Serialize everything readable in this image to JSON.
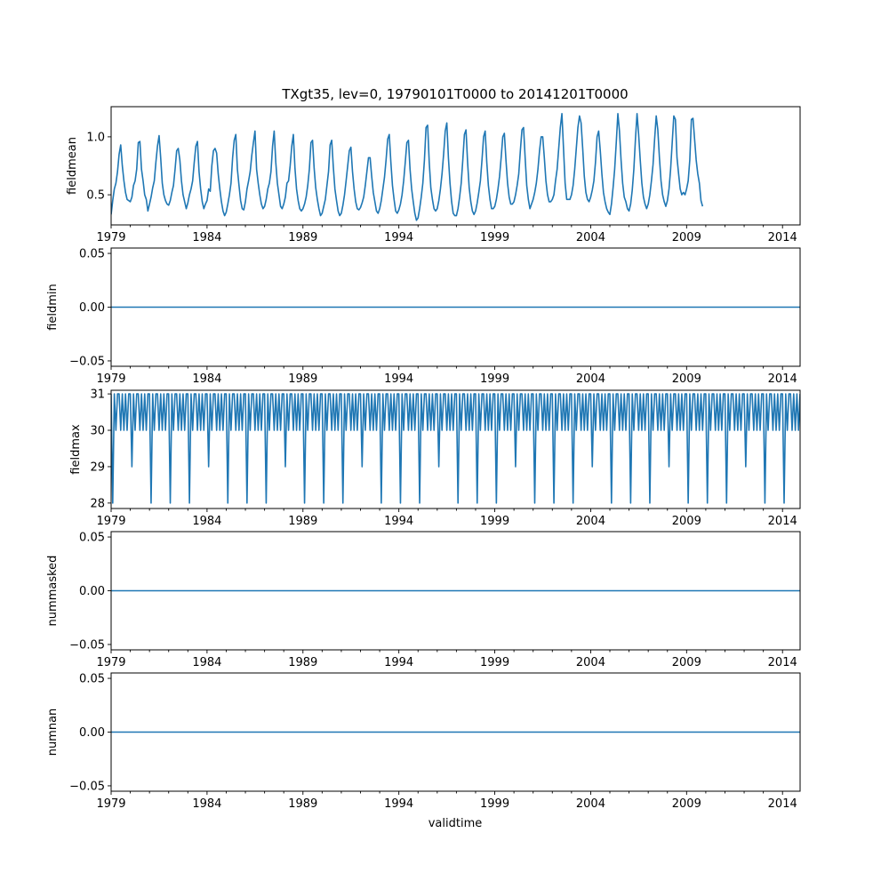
{
  "chart_data": {
    "type": "line",
    "title": "TXgt35, lev=0, 19790101T0000 to 20141201T0000",
    "xlabel": "validtime",
    "x_range": [
      1979.0,
      2014.917
    ],
    "x_tick_labels": [
      "1979",
      "1984",
      "1989",
      "1994",
      "1999",
      "2004",
      "2009",
      "2014"
    ],
    "x_tick_values": [
      1979,
      1984,
      1989,
      1994,
      1999,
      2004,
      2009,
      2014
    ],
    "frequency": "monthly",
    "panels": [
      {
        "name": "fieldmean",
        "ylabel": "fieldmean",
        "ylim": [
          0.24,
          1.26
        ],
        "yticks": [
          0.5,
          1.0
        ],
        "ytick_labels": [
          "0.5",
          "1.0"
        ],
        "series": [
          {
            "name": "fieldmean",
            "values": [
              0.33,
              0.45,
              0.55,
              0.6,
              0.7,
              0.85,
              0.93,
              0.75,
              0.62,
              0.52,
              0.46,
              0.45,
              0.44,
              0.48,
              0.58,
              0.62,
              0.72,
              0.95,
              0.96,
              0.72,
              0.62,
              0.5,
              0.46,
              0.36,
              0.42,
              0.48,
              0.56,
              0.62,
              0.78,
              0.92,
              1.01,
              0.82,
              0.6,
              0.5,
              0.45,
              0.42,
              0.41,
              0.45,
              0.52,
              0.58,
              0.72,
              0.88,
              0.9,
              0.8,
              0.62,
              0.5,
              0.44,
              0.38,
              0.43,
              0.5,
              0.55,
              0.62,
              0.78,
              0.92,
              0.96,
              0.7,
              0.55,
              0.44,
              0.38,
              0.42,
              0.45,
              0.55,
              0.53,
              0.75,
              0.88,
              0.9,
              0.86,
              0.68,
              0.55,
              0.44,
              0.36,
              0.32,
              0.35,
              0.42,
              0.5,
              0.6,
              0.82,
              0.97,
              1.02,
              0.72,
              0.58,
              0.45,
              0.38,
              0.37,
              0.44,
              0.55,
              0.62,
              0.7,
              0.84,
              0.95,
              1.05,
              0.72,
              0.6,
              0.5,
              0.42,
              0.38,
              0.4,
              0.46,
              0.55,
              0.6,
              0.7,
              0.92,
              1.05,
              0.78,
              0.6,
              0.5,
              0.4,
              0.38,
              0.42,
              0.48,
              0.6,
              0.62,
              0.75,
              0.92,
              1.02,
              0.73,
              0.55,
              0.45,
              0.38,
              0.36,
              0.38,
              0.42,
              0.48,
              0.58,
              0.72,
              0.95,
              0.97,
              0.73,
              0.56,
              0.46,
              0.38,
              0.32,
              0.34,
              0.4,
              0.46,
              0.58,
              0.7,
              0.93,
              0.97,
              0.74,
              0.55,
              0.45,
              0.36,
              0.32,
              0.34,
              0.41,
              0.5,
              0.62,
              0.75,
              0.88,
              0.91,
              0.7,
              0.55,
              0.44,
              0.38,
              0.37,
              0.39,
              0.43,
              0.48,
              0.58,
              0.7,
              0.82,
              0.82,
              0.66,
              0.52,
              0.44,
              0.36,
              0.34,
              0.38,
              0.45,
              0.55,
              0.65,
              0.8,
              0.98,
              1.02,
              0.78,
              0.58,
              0.46,
              0.36,
              0.34,
              0.37,
              0.42,
              0.5,
              0.62,
              0.78,
              0.95,
              0.97,
              0.72,
              0.55,
              0.44,
              0.34,
              0.28,
              0.3,
              0.38,
              0.48,
              0.6,
              0.8,
              1.08,
              1.1,
              0.78,
              0.56,
              0.46,
              0.38,
              0.36,
              0.38,
              0.45,
              0.55,
              0.68,
              0.85,
              1.05,
              1.12,
              0.82,
              0.6,
              0.44,
              0.34,
              0.32,
              0.32,
              0.38,
              0.48,
              0.6,
              0.8,
              1.02,
              1.06,
              0.78,
              0.56,
              0.44,
              0.36,
              0.33,
              0.36,
              0.43,
              0.52,
              0.62,
              0.8,
              1.0,
              1.05,
              0.78,
              0.58,
              0.46,
              0.38,
              0.38,
              0.4,
              0.46,
              0.55,
              0.66,
              0.82,
              1.0,
              1.03,
              0.8,
              0.6,
              0.48,
              0.42,
              0.42,
              0.44,
              0.5,
              0.58,
              0.68,
              0.88,
              1.06,
              1.08,
              0.82,
              0.58,
              0.46,
              0.38,
              0.42,
              0.46,
              0.52,
              0.6,
              0.72,
              0.88,
              1.0,
              1.0,
              0.82,
              0.62,
              0.5,
              0.44,
              0.44,
              0.46,
              0.5,
              0.62,
              0.72,
              0.9,
              1.08,
              1.2,
              0.9,
              0.6,
              0.46,
              0.46,
              0.46,
              0.5,
              0.58,
              0.72,
              0.9,
              1.08,
              1.18,
              1.12,
              0.9,
              0.66,
              0.52,
              0.46,
              0.44,
              0.48,
              0.54,
              0.62,
              0.78,
              1.0,
              1.05,
              0.88,
              0.68,
              0.52,
              0.44,
              0.38,
              0.35,
              0.33,
              0.42,
              0.56,
              0.72,
              0.95,
              1.2,
              1.05,
              0.8,
              0.6,
              0.48,
              0.44,
              0.38,
              0.36,
              0.42,
              0.54,
              0.72,
              0.98,
              1.2,
              1.02,
              0.8,
              0.6,
              0.48,
              0.42,
              0.38,
              0.42,
              0.5,
              0.62,
              0.76,
              0.98,
              1.18,
              1.06,
              0.82,
              0.62,
              0.5,
              0.44,
              0.4,
              0.45,
              0.55,
              0.72,
              0.95,
              1.18,
              1.15,
              0.82,
              0.68,
              0.55,
              0.5,
              0.52,
              0.5,
              0.55,
              0.62,
              0.8,
              1.15,
              1.16,
              0.98,
              0.8,
              0.68,
              0.6,
              0.45,
              0.4
            ]
          }
        ]
      },
      {
        "name": "fieldmin",
        "ylabel": "fieldmin",
        "ylim": [
          -0.055,
          0.055
        ],
        "yticks": [
          -0.05,
          0.0,
          0.05
        ],
        "ytick_labels": [
          "−0.05",
          "0.00",
          "0.05"
        ],
        "series": [
          {
            "name": "fieldmin",
            "constant": 0.0
          }
        ]
      },
      {
        "name": "fieldmax",
        "ylabel": "fieldmax",
        "ylim": [
          27.85,
          31.1
        ],
        "yticks": [
          28,
          29,
          30,
          31
        ],
        "ytick_labels": [
          "28",
          "29",
          "30",
          "31"
        ],
        "series": [
          {
            "name": "fieldmax",
            "pattern_base": [
              31,
              30,
              31,
              30,
              31,
              31,
              30,
              31,
              30,
              31,
              30,
              31
            ],
            "leap_feb_value": 29,
            "nonleap_feb_value": 28
          }
        ]
      },
      {
        "name": "nummasked",
        "ylabel": "nummasked",
        "ylim": [
          -0.055,
          0.055
        ],
        "yticks": [
          -0.05,
          0.0,
          0.05
        ],
        "ytick_labels": [
          "−0.05",
          "0.00",
          "0.05"
        ],
        "series": [
          {
            "name": "nummasked",
            "constant": 0.0
          }
        ]
      },
      {
        "name": "numnan",
        "ylabel": "numnan",
        "ylim": [
          -0.055,
          0.055
        ],
        "yticks": [
          -0.05,
          0.0,
          0.05
        ],
        "ytick_labels": [
          "−0.05",
          "0.00",
          "0.05"
        ],
        "series": [
          {
            "name": "numnan",
            "constant": 0.0
          }
        ]
      }
    ],
    "line_color": "#1f77b4"
  }
}
